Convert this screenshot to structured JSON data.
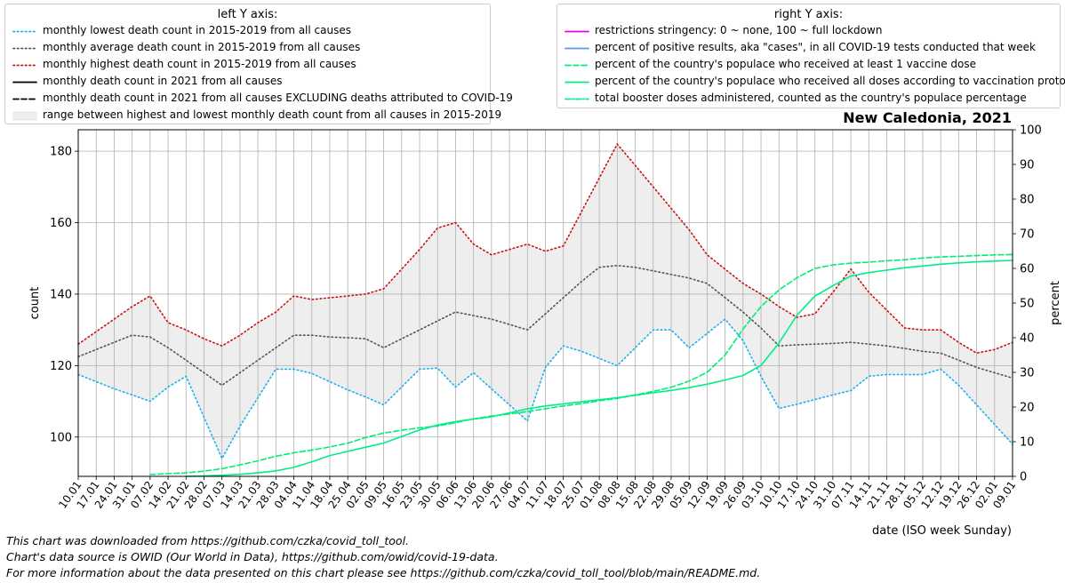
{
  "legend_left": {
    "title": "left Y axis:",
    "items": [
      {
        "label": "monthly lowest death count in 2015-2019 from all causes",
        "color": "#1ab2ee",
        "style": "dotted"
      },
      {
        "label": "monthly average death count in 2015-2019 from all causes",
        "color": "#555555",
        "style": "dotted"
      },
      {
        "label": "monthly highest death count in 2015-2019 from all causes",
        "color": "#cc1111",
        "style": "dotted"
      },
      {
        "label": "monthly death count in 2021 from all causes",
        "color": "#000000",
        "style": "solid"
      },
      {
        "label": "monthly death count in 2021 from all causes EXCLUDING deaths attributed to COVID-19",
        "color": "#000000",
        "style": "dashed"
      },
      {
        "label": "range between highest and lowest monthly death count from all causes in 2015-2019",
        "color": "#eeeeee",
        "style": "fill"
      }
    ]
  },
  "legend_right": {
    "title": "right Y axis:",
    "items": [
      {
        "label": "restrictions stringency: 0 ~ none, 100 ~ full lockdown",
        "color": "#ee00ee",
        "style": "solid"
      },
      {
        "label": "percent of positive results, aka \"cases\", in all COVID-19 tests conducted that week",
        "color": "#6495ed",
        "style": "solid"
      },
      {
        "label": "percent of the country's populace who received at least 1 vaccine dose",
        "color": "#00ee77",
        "style": "dashed"
      },
      {
        "label": "percent of the country's populace who received all doses according to vaccination protocol",
        "color": "#00ee88",
        "style": "solid"
      },
      {
        "label": "total booster doses administered, counted as the country's populace percentage",
        "color": "#00ee99",
        "style": "dashdot"
      }
    ]
  },
  "chart_data": {
    "type": "line",
    "title": "New Caledonia, 2021",
    "xlabel": "date (ISO week Sunday)",
    "ylabel_left": "count",
    "ylabel_right": "percent",
    "ylim_left": [
      89,
      186
    ],
    "ylim_right": [
      0,
      100
    ],
    "yticks_left": [
      100,
      120,
      140,
      160,
      180
    ],
    "yticks_right": [
      0,
      10,
      20,
      30,
      40,
      50,
      60,
      70,
      80,
      90,
      100
    ],
    "grid": true,
    "x": [
      "10.01",
      "17.01",
      "24.01",
      "31.01",
      "07.02",
      "14.02",
      "21.02",
      "28.02",
      "07.03",
      "14.03",
      "21.03",
      "28.03",
      "04.04",
      "11.04",
      "18.04",
      "25.04",
      "02.05",
      "09.05",
      "16.05",
      "23.05",
      "30.05",
      "06.06",
      "13.06",
      "20.06",
      "27.06",
      "04.07",
      "11.07",
      "18.07",
      "25.07",
      "01.08",
      "08.08",
      "15.08",
      "22.08",
      "29.08",
      "05.09",
      "12.09",
      "19.09",
      "26.09",
      "03.10",
      "10.10",
      "17.10",
      "24.10",
      "31.10",
      "07.11",
      "14.11",
      "21.11",
      "28.11",
      "05.12",
      "12.12",
      "19.12",
      "26.12",
      "02.01",
      "09.01"
    ],
    "series": [
      {
        "name": "monthly lowest death count in 2015-2019 from all causes",
        "axis": "left",
        "color": "#1ab2ee",
        "style": "dotted",
        "values": [
          117.5,
          115.5,
          113.5,
          111.8,
          110.0,
          114.0,
          117.0,
          105.5,
          94.0,
          103.0,
          111.0,
          119.0,
          119.0,
          117.8,
          115.5,
          113.2,
          111.2,
          109.0,
          114.0,
          119.0,
          119.3,
          114.0,
          118.0,
          113.5,
          109.0,
          104.5,
          119.5,
          125.5,
          124.0,
          122.0,
          120.0,
          125.0,
          130.0,
          130.0,
          125.0,
          129.0,
          133.0,
          127.0,
          117.0,
          108.0,
          109.2,
          110.5,
          111.8,
          113.0,
          117.0,
          117.5,
          117.5,
          117.5,
          119.0,
          114.5,
          109.0,
          103.5,
          98.0
        ]
      },
      {
        "name": "monthly average death count in 2015-2019 from all causes",
        "axis": "left",
        "color": "#555555",
        "style": "dotted",
        "values": [
          122.5,
          124.5,
          126.5,
          128.5,
          128.0,
          125.0,
          121.5,
          118.0,
          114.5,
          118.0,
          121.5,
          125.0,
          128.5,
          128.5,
          128.0,
          127.8,
          127.5,
          125.0,
          127.5,
          130.0,
          132.5,
          135.0,
          134.0,
          133.0,
          131.5,
          130.0,
          134.5,
          139.0,
          143.5,
          147.5,
          148.0,
          147.5,
          146.5,
          145.5,
          144.5,
          143.0,
          139.0,
          135.0,
          130.5,
          125.5,
          125.8,
          126.0,
          126.2,
          126.5,
          126.0,
          125.5,
          124.8,
          124.0,
          123.5,
          121.5,
          119.5,
          118.0,
          116.5
        ]
      },
      {
        "name": "monthly highest death count in 2015-2019 from all causes",
        "axis": "left",
        "color": "#cc1111",
        "style": "dotted",
        "values": [
          126.0,
          129.5,
          133.0,
          136.5,
          139.5,
          132.0,
          130.0,
          127.5,
          125.5,
          128.5,
          132.0,
          135.0,
          139.5,
          138.5,
          139.0,
          139.5,
          140.0,
          141.5,
          147.0,
          152.5,
          158.5,
          160.0,
          154.0,
          151.0,
          152.5,
          154.0,
          152.0,
          153.5,
          163.0,
          172.5,
          182.0,
          176.0,
          170.0,
          164.0,
          158.0,
          151.0,
          147.0,
          143.0,
          140.0,
          136.5,
          133.5,
          134.5,
          140.5,
          147.0,
          140.5,
          135.5,
          130.5,
          130.0,
          130.0,
          126.5,
          123.5,
          124.5,
          126.5
        ]
      },
      {
        "name": "percent of the country's populace who received at least 1 vaccine dose",
        "axis": "right",
        "color": "#00ee77",
        "style": "dashed",
        "values": [
          null,
          null,
          null,
          null,
          0.5,
          0.8,
          1.0,
          1.5,
          2.2,
          3.3,
          4.5,
          5.8,
          6.8,
          7.6,
          8.5,
          9.6,
          11.2,
          12.5,
          13.3,
          14.0,
          14.5,
          15.5,
          16.6,
          17.4,
          18.0,
          18.7,
          19.5,
          20.3,
          21.0,
          21.8,
          22.5,
          23.5,
          24.5,
          25.7,
          27.5,
          30.0,
          35.0,
          42.5,
          49.0,
          53.8,
          57.3,
          60.0,
          61.0,
          61.5,
          61.8,
          62.2,
          62.5,
          63.0,
          63.3,
          63.5,
          63.7,
          63.9,
          64.0
        ]
      },
      {
        "name": "percent of the country's populace who received all doses according to vaccination protocol",
        "axis": "right",
        "color": "#00ee88",
        "style": "solid",
        "values": [
          null,
          null,
          null,
          null,
          null,
          null,
          0.0,
          0.1,
          0.3,
          0.6,
          1.0,
          1.6,
          2.6,
          4.2,
          6.0,
          7.2,
          8.4,
          9.6,
          11.5,
          13.4,
          14.8,
          15.8,
          16.5,
          17.2,
          18.3,
          19.5,
          20.3,
          20.9,
          21.5,
          22.1,
          22.7,
          23.4,
          24.1,
          24.8,
          25.6,
          26.6,
          27.8,
          29.1,
          32.0,
          38.5,
          46.5,
          52.0,
          55.0,
          57.8,
          58.8,
          59.5,
          60.2,
          60.7,
          61.2,
          61.6,
          61.9,
          62.1,
          62.3
        ]
      }
    ]
  },
  "footnotes": [
    "This chart was downloaded from https://github.com/czka/covid_toll_tool.",
    "Chart's data source is OWID (Our World in Data), https://github.com/owid/covid-19-data.",
    "For more information about the data presented on this chart please see https://github.com/czka/covid_toll_tool/blob/main/README.md."
  ]
}
